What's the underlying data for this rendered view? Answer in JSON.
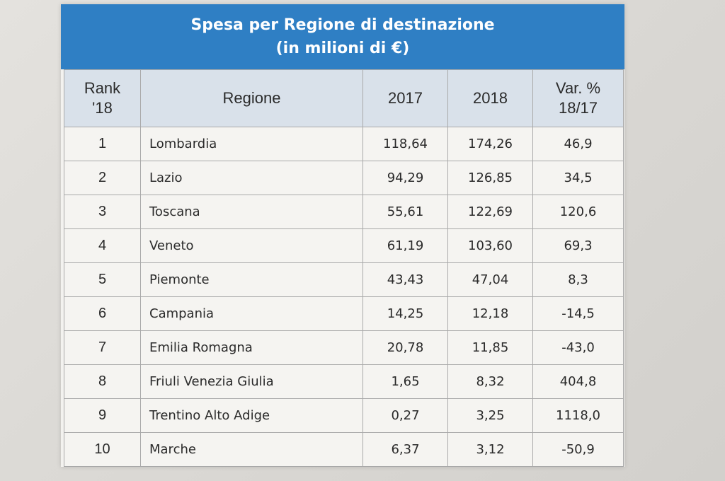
{
  "title": {
    "line1": "Spesa per Regione di destinazione",
    "line2": "(in milioni di €)"
  },
  "table": {
    "headers": {
      "rank_line1": "Rank",
      "rank_line2": "'18",
      "region": "Regione",
      "y2017": "2017",
      "y2018": "2018",
      "var_line1": "Var. %",
      "var_line2": "18/17"
    },
    "rows": [
      {
        "rank": "1",
        "region": "Lombardia",
        "y2017": "118,64",
        "y2018": "174,26",
        "var": "46,9"
      },
      {
        "rank": "2",
        "region": "Lazio",
        "y2017": "94,29",
        "y2018": "126,85",
        "var": "34,5"
      },
      {
        "rank": "3",
        "region": "Toscana",
        "y2017": "55,61",
        "y2018": "122,69",
        "var": "120,6"
      },
      {
        "rank": "4",
        "region": "Veneto",
        "y2017": "61,19",
        "y2018": "103,60",
        "var": "69,3"
      },
      {
        "rank": "5",
        "region": "Piemonte",
        "y2017": "43,43",
        "y2018": "47,04",
        "var": "8,3"
      },
      {
        "rank": "6",
        "region": "Campania",
        "y2017": "14,25",
        "y2018": "12,18",
        "var": "-14,5"
      },
      {
        "rank": "7",
        "region": "Emilia Romagna",
        "y2017": "20,78",
        "y2018": "11,85",
        "var": "-43,0"
      },
      {
        "rank": "8",
        "region": "Friuli Venezia Giulia",
        "y2017": "1,65",
        "y2018": "8,32",
        "var": "404,8"
      },
      {
        "rank": "9",
        "region": "Trentino Alto Adige",
        "y2017": "0,27",
        "y2018": "3,25",
        "var": "1118,0"
      },
      {
        "rank": "10",
        "region": "Marche",
        "y2017": "6,37",
        "y2018": "3,12",
        "var": "-50,9"
      }
    ]
  },
  "colors": {
    "title_bar": "#2f7fc4",
    "header_bg": "#d9e1ea",
    "border": "#a9a9a9"
  }
}
